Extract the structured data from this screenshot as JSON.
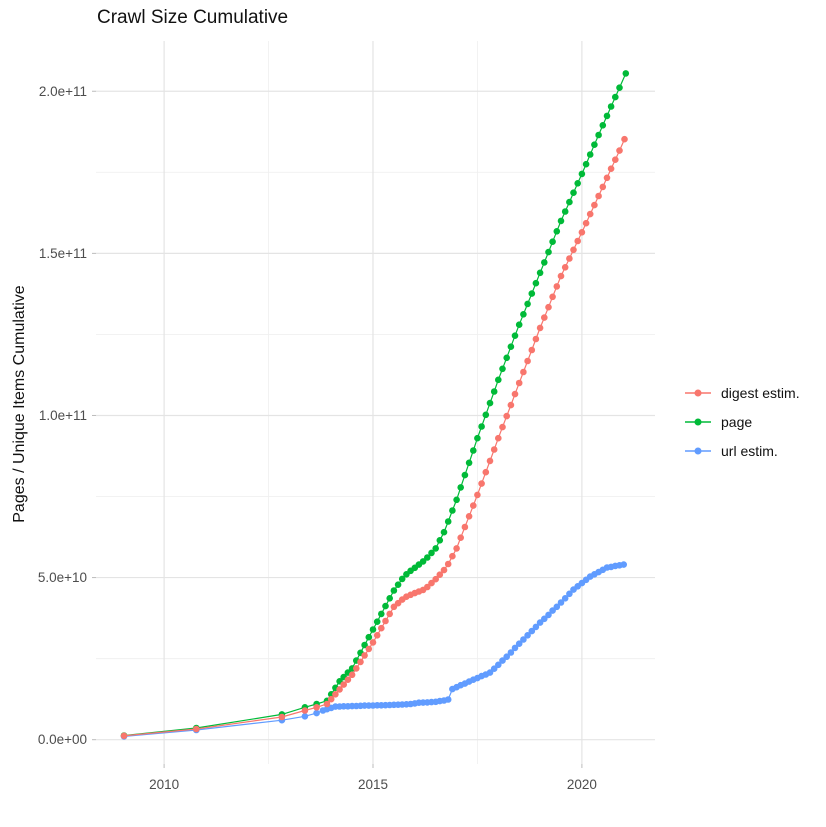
{
  "chart_data": {
    "type": "scatter",
    "title": "Crawl Size Cumulative",
    "xlabel": "",
    "ylabel": "Pages / Unique Items Cumulative",
    "background": "#FFFFFF",
    "grid": true,
    "grid_major_color": "#E4E4E4",
    "grid_minor_color": "#F0F0F0",
    "tick_color": "#BBBBBB",
    "axis_text_color": "#4D4D4D",
    "legend_position": "right",
    "x_ticks": {
      "major": [
        2010,
        2015,
        2020
      ],
      "minor": [
        2012.5,
        2017.5
      ],
      "labels": [
        "2010",
        "2015",
        "2020"
      ]
    },
    "y_ticks_e9": {
      "major": [
        0,
        50,
        100,
        150,
        200
      ],
      "minor": [
        25,
        75,
        125,
        175
      ],
      "labels": [
        "0.0e+00",
        "5.0e+10",
        "1.0e+11",
        "1.5e+11",
        "2.0e+11"
      ]
    },
    "x_range": [
      2008.37,
      2021.75
    ],
    "y_range_e9": [
      -7.5,
      215.5
    ],
    "value_scale": 1000000000.0,
    "draw_order": [
      1,
      2,
      0
    ],
    "series": [
      {
        "name": "digest estim.",
        "color": "#F8766D",
        "points": [
          [
            2009.04,
            1.2
          ],
          [
            2010.77,
            3.3
          ],
          [
            2012.82,
            7.0
          ],
          [
            2013.37,
            9.0
          ],
          [
            2013.65,
            10.0
          ],
          [
            2013.9,
            11.0
          ],
          [
            2014.0,
            12.5
          ],
          [
            2014.1,
            14.0
          ],
          [
            2014.2,
            15.5
          ],
          [
            2014.3,
            17.0
          ],
          [
            2014.4,
            18.5
          ],
          [
            2014.5,
            20.0
          ],
          [
            2014.6,
            22.0
          ],
          [
            2014.7,
            24.0
          ],
          [
            2014.8,
            26.0
          ],
          [
            2014.9,
            28.0
          ],
          [
            2015.0,
            30.0
          ],
          [
            2015.1,
            32.2
          ],
          [
            2015.2,
            34.4
          ],
          [
            2015.3,
            36.6
          ],
          [
            2015.4,
            38.8
          ],
          [
            2015.5,
            41.0
          ],
          [
            2015.6,
            42.1
          ],
          [
            2015.7,
            43.2
          ],
          [
            2015.8,
            44.1
          ],
          [
            2015.9,
            44.7
          ],
          [
            2016.0,
            45.2
          ],
          [
            2016.1,
            45.7
          ],
          [
            2016.2,
            46.2
          ],
          [
            2016.3,
            47.1
          ],
          [
            2016.4,
            48.3
          ],
          [
            2016.5,
            49.5
          ],
          [
            2016.6,
            50.9
          ],
          [
            2016.7,
            52.3
          ],
          [
            2016.8,
            54.2
          ],
          [
            2016.9,
            56.6
          ],
          [
            2017.0,
            59.0
          ],
          [
            2017.1,
            62.3
          ],
          [
            2017.2,
            65.6
          ],
          [
            2017.3,
            68.9
          ],
          [
            2017.4,
            72.2
          ],
          [
            2017.5,
            75.5
          ],
          [
            2017.6,
            79.0
          ],
          [
            2017.7,
            82.5
          ],
          [
            2017.8,
            86.0
          ],
          [
            2017.9,
            89.5
          ],
          [
            2018.0,
            93.0
          ],
          [
            2018.1,
            96.4
          ],
          [
            2018.2,
            99.8
          ],
          [
            2018.3,
            103.2
          ],
          [
            2018.4,
            106.6
          ],
          [
            2018.5,
            110.0
          ],
          [
            2018.6,
            113.4
          ],
          [
            2018.7,
            116.8
          ],
          [
            2018.8,
            120.2
          ],
          [
            2018.9,
            123.6
          ],
          [
            2019.0,
            127.0
          ],
          [
            2019.1,
            130.2
          ],
          [
            2019.2,
            133.4
          ],
          [
            2019.3,
            136.6
          ],
          [
            2019.4,
            139.8
          ],
          [
            2019.5,
            143.0
          ],
          [
            2019.6,
            145.7
          ],
          [
            2019.7,
            148.4
          ],
          [
            2019.8,
            151.1
          ],
          [
            2019.9,
            153.8
          ],
          [
            2020.0,
            156.5
          ],
          [
            2020.1,
            159.3
          ],
          [
            2020.2,
            162.1
          ],
          [
            2020.3,
            164.9
          ],
          [
            2020.4,
            167.7
          ],
          [
            2020.5,
            170.5
          ],
          [
            2020.6,
            173.3
          ],
          [
            2020.7,
            176.1
          ],
          [
            2020.8,
            178.9
          ],
          [
            2020.9,
            181.7
          ],
          [
            2021.02,
            185.2
          ]
        ]
      },
      {
        "name": "page",
        "color": "#00BA38",
        "points": [
          [
            2009.04,
            1.3
          ],
          [
            2010.77,
            3.6
          ],
          [
            2012.82,
            7.8
          ],
          [
            2013.37,
            10.0
          ],
          [
            2013.65,
            11.0
          ],
          [
            2013.9,
            12.0
          ],
          [
            2014.0,
            14.0
          ],
          [
            2014.1,
            16.0
          ],
          [
            2014.2,
            18.0
          ],
          [
            2014.3,
            19.3
          ],
          [
            2014.4,
            20.7
          ],
          [
            2014.5,
            22.0
          ],
          [
            2014.6,
            24.4
          ],
          [
            2014.7,
            26.8
          ],
          [
            2014.8,
            29.2
          ],
          [
            2014.9,
            31.6
          ],
          [
            2015.0,
            34.0
          ],
          [
            2015.1,
            36.4
          ],
          [
            2015.2,
            38.8
          ],
          [
            2015.3,
            41.2
          ],
          [
            2015.4,
            43.6
          ],
          [
            2015.5,
            46.0
          ],
          [
            2015.6,
            47.8
          ],
          [
            2015.7,
            49.6
          ],
          [
            2015.8,
            51.0
          ],
          [
            2015.9,
            52.1
          ],
          [
            2016.0,
            53.0
          ],
          [
            2016.1,
            54.0
          ],
          [
            2016.2,
            55.0
          ],
          [
            2016.3,
            56.2
          ],
          [
            2016.4,
            57.6
          ],
          [
            2016.5,
            59.0
          ],
          [
            2016.6,
            61.5
          ],
          [
            2016.7,
            64.0
          ],
          [
            2016.8,
            67.3
          ],
          [
            2016.9,
            70.7
          ],
          [
            2017.0,
            74.0
          ],
          [
            2017.1,
            77.8
          ],
          [
            2017.2,
            81.6
          ],
          [
            2017.3,
            85.4
          ],
          [
            2017.4,
            89.2
          ],
          [
            2017.5,
            93.0
          ],
          [
            2017.6,
            96.6
          ],
          [
            2017.7,
            100.2
          ],
          [
            2017.8,
            103.8
          ],
          [
            2017.9,
            107.4
          ],
          [
            2018.0,
            111.0
          ],
          [
            2018.1,
            114.4
          ],
          [
            2018.2,
            117.8
          ],
          [
            2018.3,
            121.2
          ],
          [
            2018.4,
            124.6
          ],
          [
            2018.5,
            128.0
          ],
          [
            2018.6,
            131.2
          ],
          [
            2018.7,
            134.4
          ],
          [
            2018.8,
            137.6
          ],
          [
            2018.9,
            140.8
          ],
          [
            2019.0,
            144.0
          ],
          [
            2019.1,
            147.2
          ],
          [
            2019.2,
            150.4
          ],
          [
            2019.3,
            153.6
          ],
          [
            2019.4,
            156.8
          ],
          [
            2019.5,
            160.0
          ],
          [
            2019.6,
            162.9
          ],
          [
            2019.7,
            165.8
          ],
          [
            2019.8,
            168.7
          ],
          [
            2019.9,
            171.6
          ],
          [
            2020.0,
            174.5
          ],
          [
            2020.1,
            177.5
          ],
          [
            2020.2,
            180.5
          ],
          [
            2020.3,
            183.5
          ],
          [
            2020.4,
            186.5
          ],
          [
            2020.5,
            189.5
          ],
          [
            2020.6,
            192.4
          ],
          [
            2020.7,
            195.3
          ],
          [
            2020.8,
            198.2
          ],
          [
            2020.9,
            201.1
          ],
          [
            2021.05,
            205.5
          ]
        ]
      },
      {
        "name": "url estim.",
        "color": "#619CFF",
        "points": [
          [
            2009.04,
            1.0
          ],
          [
            2010.77,
            3.0
          ],
          [
            2012.82,
            6.0
          ],
          [
            2013.37,
            7.2
          ],
          [
            2013.65,
            8.2
          ],
          [
            2013.8,
            9.0
          ],
          [
            2013.9,
            9.4
          ],
          [
            2014.0,
            9.8
          ],
          [
            2014.1,
            10.2
          ],
          [
            2014.2,
            10.25
          ],
          [
            2014.3,
            10.3
          ],
          [
            2014.4,
            10.3
          ],
          [
            2014.5,
            10.35
          ],
          [
            2014.6,
            10.4
          ],
          [
            2014.7,
            10.45
          ],
          [
            2014.8,
            10.5
          ],
          [
            2014.9,
            10.5
          ],
          [
            2015.0,
            10.55
          ],
          [
            2015.1,
            10.6
          ],
          [
            2015.2,
            10.6
          ],
          [
            2015.3,
            10.65
          ],
          [
            2015.4,
            10.7
          ],
          [
            2015.5,
            10.75
          ],
          [
            2015.6,
            10.8
          ],
          [
            2015.7,
            10.85
          ],
          [
            2015.8,
            10.9
          ],
          [
            2015.9,
            11.0
          ],
          [
            2016.0,
            11.2
          ],
          [
            2016.1,
            11.4
          ],
          [
            2016.2,
            11.45
          ],
          [
            2016.3,
            11.5
          ],
          [
            2016.4,
            11.6
          ],
          [
            2016.5,
            11.7
          ],
          [
            2016.6,
            11.9
          ],
          [
            2016.7,
            12.1
          ],
          [
            2016.8,
            12.4
          ],
          [
            2016.9,
            15.6
          ],
          [
            2017.0,
            16.2
          ],
          [
            2017.1,
            16.8
          ],
          [
            2017.2,
            17.3
          ],
          [
            2017.3,
            17.9
          ],
          [
            2017.4,
            18.5
          ],
          [
            2017.5,
            19.0
          ],
          [
            2017.6,
            19.6
          ],
          [
            2017.7,
            20.1
          ],
          [
            2017.8,
            20.7
          ],
          [
            2017.9,
            21.9
          ],
          [
            2018.0,
            23.1
          ],
          [
            2018.1,
            24.4
          ],
          [
            2018.2,
            25.6
          ],
          [
            2018.3,
            26.9
          ],
          [
            2018.4,
            28.3
          ],
          [
            2018.5,
            29.6
          ],
          [
            2018.6,
            30.9
          ],
          [
            2018.7,
            32.2
          ],
          [
            2018.8,
            33.5
          ],
          [
            2018.9,
            34.8
          ],
          [
            2019.0,
            36.1
          ],
          [
            2019.1,
            37.3
          ],
          [
            2019.2,
            38.5
          ],
          [
            2019.3,
            39.8
          ],
          [
            2019.4,
            41.0
          ],
          [
            2019.5,
            42.3
          ],
          [
            2019.6,
            43.6
          ],
          [
            2019.7,
            45.0
          ],
          [
            2019.8,
            46.3
          ],
          [
            2019.9,
            47.3
          ],
          [
            2020.0,
            48.3
          ],
          [
            2020.1,
            49.3
          ],
          [
            2020.2,
            50.3
          ],
          [
            2020.3,
            51.0
          ],
          [
            2020.4,
            51.7
          ],
          [
            2020.5,
            52.4
          ],
          [
            2020.6,
            53.1
          ],
          [
            2020.7,
            53.3
          ],
          [
            2020.8,
            53.6
          ],
          [
            2020.9,
            53.8
          ],
          [
            2021.0,
            54.0
          ]
        ]
      }
    ]
  }
}
